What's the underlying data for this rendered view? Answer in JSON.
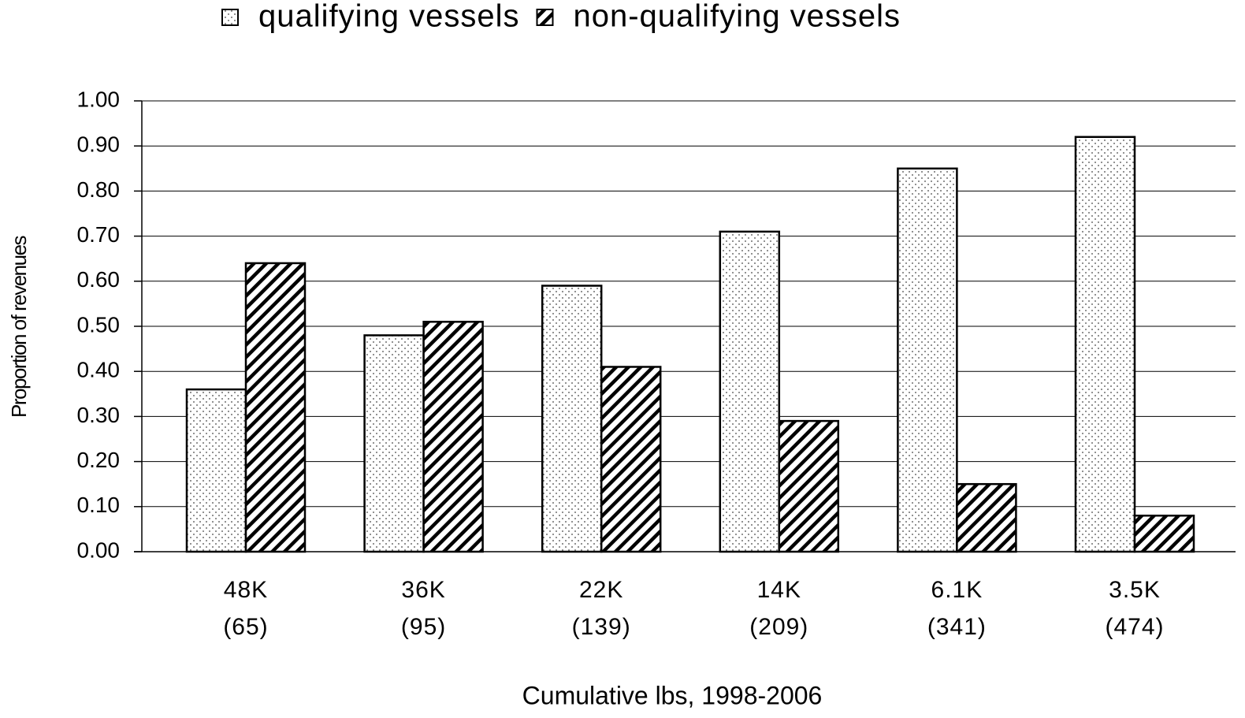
{
  "chart_data": {
    "type": "bar",
    "x_label": "Cumulative lbs, 1998-2006",
    "y_label": "Proportion of revenues",
    "categories": [
      [
        "48K",
        "(65)"
      ],
      [
        "36K",
        "(95)"
      ],
      [
        "22K",
        "(139)"
      ],
      [
        "14K",
        "(209)"
      ],
      [
        "6.1K",
        "(341)"
      ],
      [
        "3.5K",
        "(474)"
      ]
    ],
    "series": [
      {
        "name": "qualifying vessels",
        "color": "#ffffff",
        "pattern": "dots",
        "values": [
          0.36,
          0.48,
          0.59,
          0.71,
          0.85,
          0.92
        ]
      },
      {
        "name": "non-qualifying vessels",
        "color": "#ffffff",
        "pattern": "hatch",
        "values": [
          0.64,
          0.51,
          0.41,
          0.29,
          0.15,
          0.08
        ]
      }
    ],
    "ylim": [
      0,
      1
    ],
    "yticks": [
      {
        "value": 0,
        "label": "0.00"
      },
      {
        "value": 0.1,
        "label": "0.10"
      },
      {
        "value": 0.2,
        "label": "0.20"
      },
      {
        "value": 0.3,
        "label": "0.30"
      },
      {
        "value": 0.4,
        "label": "0.40"
      },
      {
        "value": 0.5,
        "label": "0.50"
      },
      {
        "value": 0.6,
        "label": "0.60"
      },
      {
        "value": 0.7,
        "label": "0.70"
      },
      {
        "value": 0.8,
        "label": "0.80"
      },
      {
        "value": 0.9,
        "label": "0.90"
      },
      {
        "value": 1,
        "label": "1.00"
      }
    ],
    "grid": true,
    "legend": "top"
  }
}
